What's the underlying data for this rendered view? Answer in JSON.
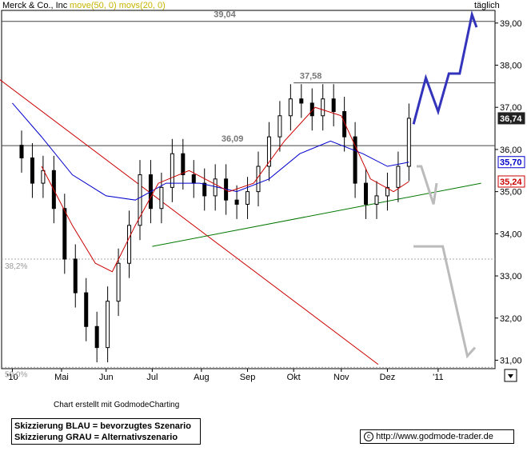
{
  "header": {
    "title": "Merck & Co., Inc",
    "indicators": "move(50, 0) movs(20, 0)",
    "period": "täglich"
  },
  "footer": {
    "credit": "Chart erstellt mit GodmodeCharting",
    "legend_blue": "Skizzierung BLAU = bevorzugtes Szenario",
    "legend_gray": "Skizzierung GRAU = Alternativszenario",
    "url": "http://www.godmode-trader.de",
    "copyright_icon": "copyright-icon"
  },
  "colors": {
    "price": "#000000",
    "ma50": "#0000cc",
    "ma20": "#cc0000",
    "downtrend": "#cc0000",
    "uptrend": "#007700",
    "blue_scenario": "#3333bb",
    "gray_scenario": "#bbbbbb",
    "hline": "#444444",
    "fib": "#aaaaaa"
  },
  "chart_data": {
    "type": "candlestick",
    "title": "Merck & Co., Inc",
    "x_ticks": [
      "'10",
      "Mai",
      "Jun",
      "Jul",
      "Aug",
      "Sep",
      "Okt",
      "Nov",
      "Dez",
      "'11"
    ],
    "y_ticks": [
      "31,00",
      "32,00",
      "33,00",
      "34,00",
      "35,00",
      "36,00",
      "37,00",
      "38,00",
      "39,00"
    ],
    "ylim": [
      30.8,
      39.3
    ],
    "price_labels": [
      {
        "text": "36,74",
        "value": 36.74,
        "style": "dark"
      },
      {
        "text": "35,70",
        "value": 35.7,
        "style": "blue"
      },
      {
        "text": "35,24",
        "value": 35.24,
        "style": "red"
      }
    ],
    "horizontal_levels": [
      {
        "label": "39,04",
        "value": 39.04
      },
      {
        "label": "37,58",
        "value": 37.58
      },
      {
        "label": "36,09",
        "value": 36.09
      }
    ],
    "fib_levels": [
      {
        "label": "38,2%",
        "value": 33.4
      },
      {
        "label": "50,0%",
        "value": 30.83
      }
    ],
    "ohlc_weekly": [
      {
        "date": "2010-04-07",
        "close": 35.8
      },
      {
        "date": "2010-04-14",
        "close": 35.2
      },
      {
        "date": "2010-04-21",
        "close": 35.5
      },
      {
        "date": "2010-04-28",
        "close": 34.6
      },
      {
        "date": "2010-05-05",
        "close": 33.4
      },
      {
        "date": "2010-05-12",
        "close": 32.6
      },
      {
        "date": "2010-05-19",
        "close": 31.8
      },
      {
        "date": "2010-05-26",
        "close": 31.3
      },
      {
        "date": "2010-06-02",
        "close": 32.4
      },
      {
        "date": "2010-06-09",
        "close": 33.3
      },
      {
        "date": "2010-06-16",
        "close": 34.2
      },
      {
        "date": "2010-06-23",
        "close": 35.4
      },
      {
        "date": "2010-06-30",
        "close": 34.6
      },
      {
        "date": "2010-07-07",
        "close": 35.1
      },
      {
        "date": "2010-07-14",
        "close": 35.9
      },
      {
        "date": "2010-07-21",
        "close": 35.4
      },
      {
        "date": "2010-07-28",
        "close": 35.2
      },
      {
        "date": "2010-08-04",
        "close": 34.9
      },
      {
        "date": "2010-08-11",
        "close": 35.3
      },
      {
        "date": "2010-08-18",
        "close": 34.8
      },
      {
        "date": "2010-08-25",
        "close": 34.7
      },
      {
        "date": "2010-09-01",
        "close": 35.0
      },
      {
        "date": "2010-09-08",
        "close": 35.6
      },
      {
        "date": "2010-09-15",
        "close": 36.3
      },
      {
        "date": "2010-09-22",
        "close": 36.8
      },
      {
        "date": "2010-09-29",
        "close": 37.2
      },
      {
        "date": "2010-10-06",
        "close": 37.1
      },
      {
        "date": "2010-10-13",
        "close": 36.8
      },
      {
        "date": "2010-10-20",
        "close": 37.2
      },
      {
        "date": "2010-10-27",
        "close": 36.9
      },
      {
        "date": "2010-11-03",
        "close": 36.3
      },
      {
        "date": "2010-11-10",
        "close": 35.2
      },
      {
        "date": "2010-11-17",
        "close": 34.7
      },
      {
        "date": "2010-11-24",
        "close": 34.9
      },
      {
        "date": "2010-12-01",
        "close": 35.1
      },
      {
        "date": "2010-12-08",
        "close": 35.6
      },
      {
        "date": "2010-12-15",
        "close": 36.74
      }
    ],
    "ma50_points": [
      {
        "date": "2010-04-01",
        "value": 37.1
      },
      {
        "date": "2010-04-20",
        "value": 36.3
      },
      {
        "date": "2010-05-10",
        "value": 35.4
      },
      {
        "date": "2010-06-01",
        "value": 34.9
      },
      {
        "date": "2010-06-20",
        "value": 34.8
      },
      {
        "date": "2010-07-10",
        "value": 35.2
      },
      {
        "date": "2010-08-01",
        "value": 35.2
      },
      {
        "date": "2010-08-25",
        "value": 35.0
      },
      {
        "date": "2010-09-15",
        "value": 35.3
      },
      {
        "date": "2010-10-05",
        "value": 35.9
      },
      {
        "date": "2010-10-25",
        "value": 36.2
      },
      {
        "date": "2010-11-15",
        "value": 35.9
      },
      {
        "date": "2010-12-01",
        "value": 35.6
      },
      {
        "date": "2010-12-15",
        "value": 35.7
      }
    ],
    "ma20_points": [
      {
        "date": "2010-04-20",
        "value": 35.6
      },
      {
        "date": "2010-05-10",
        "value": 34.2
      },
      {
        "date": "2010-05-25",
        "value": 33.3
      },
      {
        "date": "2010-06-05",
        "value": 33.1
      },
      {
        "date": "2010-06-20",
        "value": 34.2
      },
      {
        "date": "2010-07-05",
        "value": 35.2
      },
      {
        "date": "2010-07-25",
        "value": 35.5
      },
      {
        "date": "2010-08-20",
        "value": 35.0
      },
      {
        "date": "2010-09-05",
        "value": 35.2
      },
      {
        "date": "2010-09-25",
        "value": 36.2
      },
      {
        "date": "2010-10-15",
        "value": 37.0
      },
      {
        "date": "2010-11-01",
        "value": 36.8
      },
      {
        "date": "2010-11-20",
        "value": 35.3
      },
      {
        "date": "2010-12-05",
        "value": 35.0
      },
      {
        "date": "2010-12-15",
        "value": 35.24
      }
    ],
    "trendlines": [
      {
        "name": "downtrend",
        "from": {
          "date": "2010-03-15",
          "value": 37.9
        },
        "to": {
          "date": "2010-11-25",
          "value": 30.9
        }
      },
      {
        "name": "uptrend",
        "from": {
          "date": "2010-07-01",
          "value": 33.7
        },
        "to": {
          "date": "2011-01-31",
          "value": 35.2
        }
      }
    ],
    "scenarios": [
      {
        "name": "blau",
        "points": [
          {
            "date": "2010-12-18",
            "value": 36.6
          },
          {
            "date": "2010-12-26",
            "value": 37.7
          },
          {
            "date": "2011-01-03",
            "value": 36.9
          },
          {
            "date": "2011-01-10",
            "value": 37.8
          },
          {
            "date": "2011-01-17",
            "value": 37.8
          },
          {
            "date": "2011-01-25",
            "value": 39.2
          },
          {
            "date": "2011-01-28",
            "value": 38.9
          }
        ]
      },
      {
        "name": "grau",
        "points": [
          {
            "date": "2010-12-20",
            "value": 35.6
          },
          {
            "date": "2010-12-23",
            "value": 35.6
          },
          {
            "date": "2010-12-31",
            "value": 34.7
          },
          {
            "date": "2011-01-02",
            "value": 35.2
          }
        ]
      },
      {
        "name": "grau2",
        "points": [
          {
            "date": "2010-12-18",
            "value": 33.7
          },
          {
            "date": "2011-01-06",
            "value": 33.7
          },
          {
            "date": "2011-01-22",
            "value": 31.1
          },
          {
            "date": "2011-01-27",
            "value": 31.3
          }
        ]
      }
    ]
  }
}
